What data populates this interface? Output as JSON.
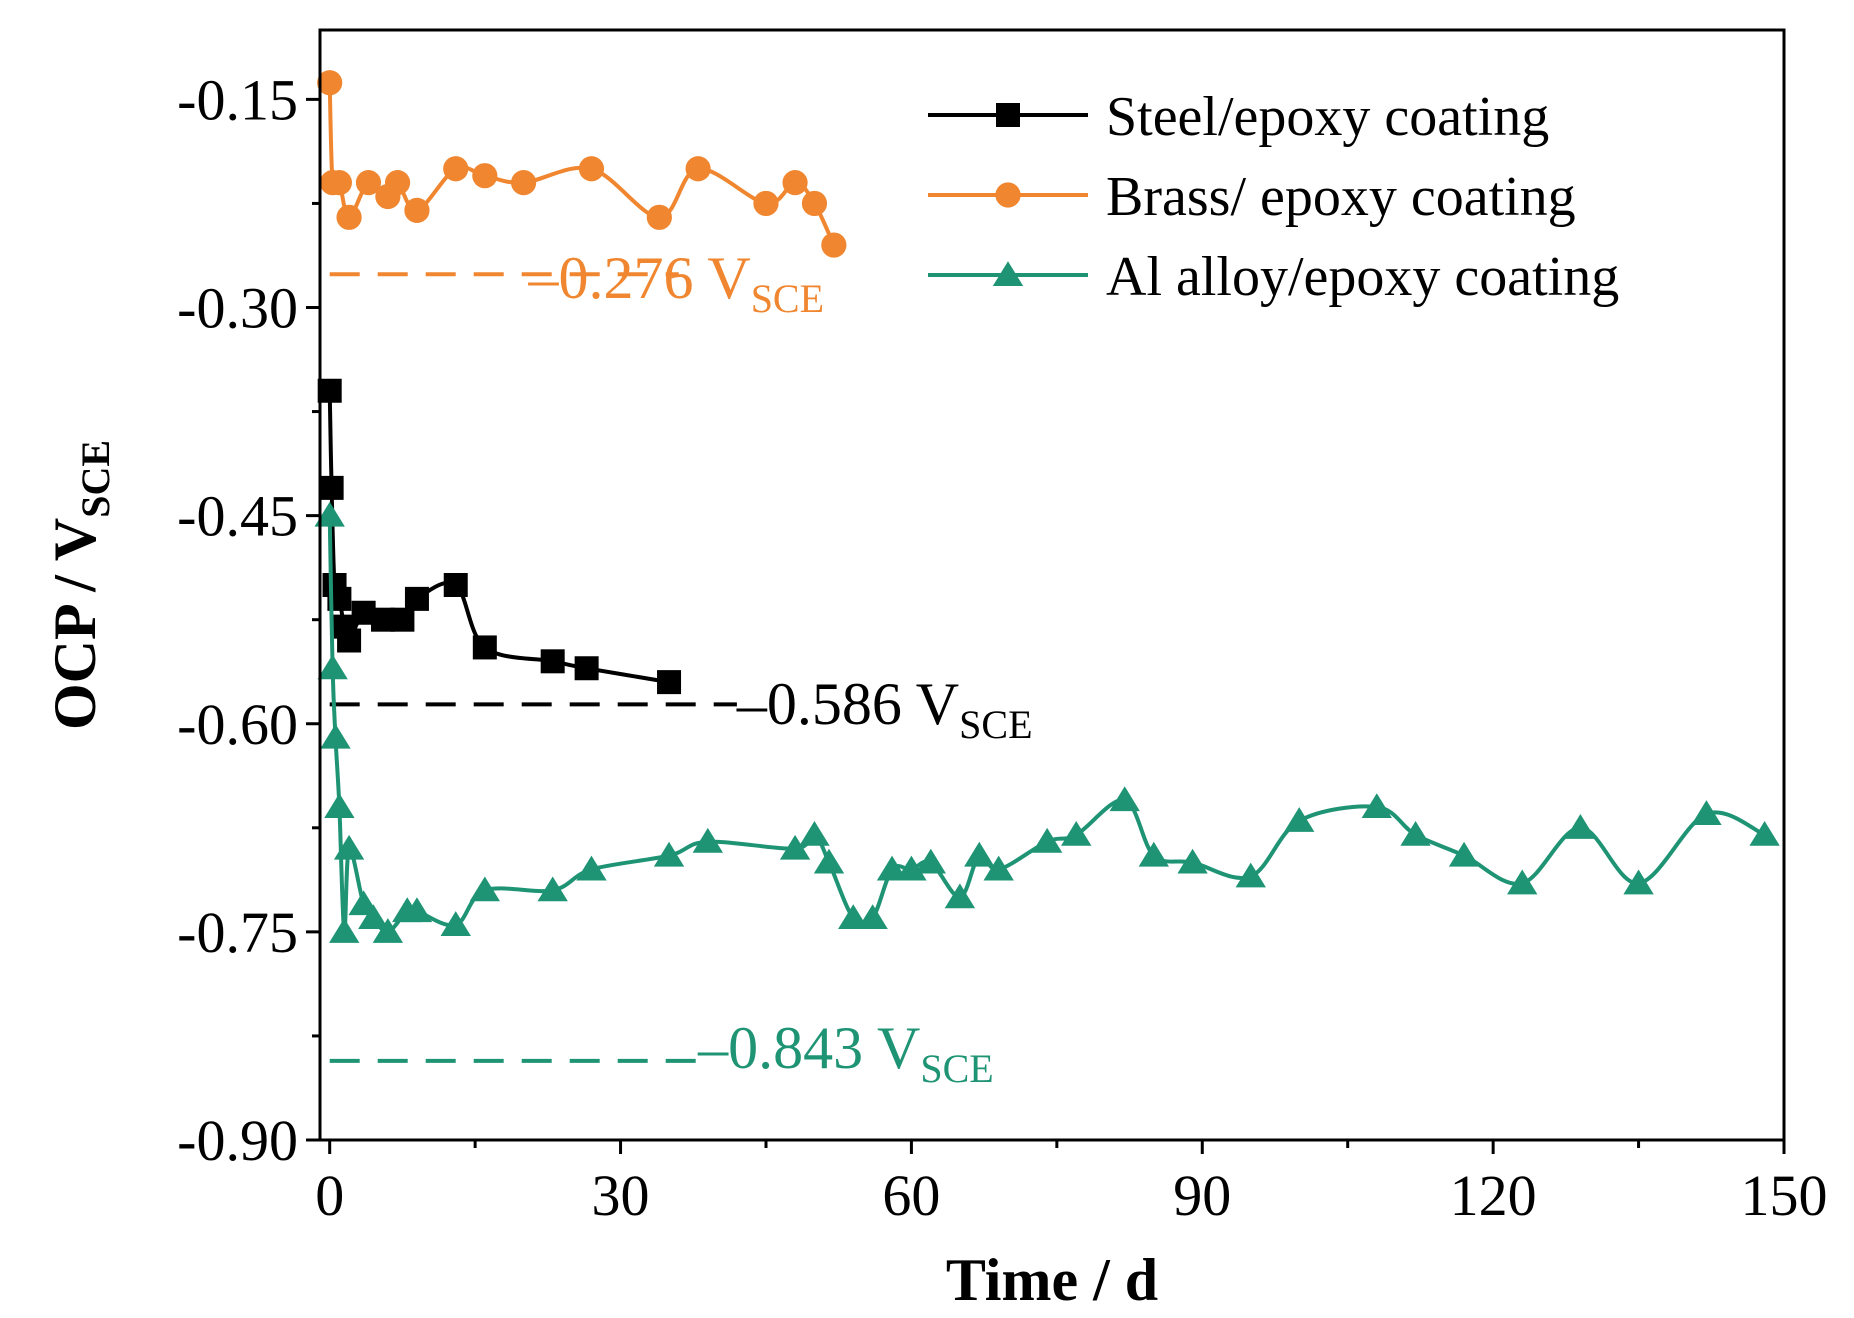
{
  "chart_data": {
    "type": "line",
    "title": "",
    "xlabel": "Time / d",
    "ylabel_main": "OCP / V",
    "ylabel_sub": "SCE",
    "xlim": [
      -1,
      150
    ],
    "ylim": [
      -0.9,
      -0.1
    ],
    "xticks": [
      0,
      30,
      60,
      90,
      120,
      150
    ],
    "xtick_labels": [
      "0",
      "30",
      "60",
      "90",
      "120",
      "150"
    ],
    "yticks": [
      -0.15,
      -0.3,
      -0.45,
      -0.6,
      -0.75,
      -0.9
    ],
    "ytick_labels": [
      "-0.15",
      "-0.30",
      "-0.45",
      "-0.60",
      "-0.75",
      "-0.90"
    ],
    "grid": false,
    "legend_position": "top-right",
    "series": [
      {
        "name": "Steel/epoxy coating",
        "color": "#000000",
        "marker": "square",
        "x": [
          0,
          0.2,
          0.5,
          1,
          1.5,
          2,
          3.5,
          5.5,
          7.5,
          9,
          13,
          16,
          23,
          26.5,
          35
        ],
        "y": [
          -0.36,
          -0.43,
          -0.5,
          -0.51,
          -0.53,
          -0.54,
          -0.52,
          -0.525,
          -0.525,
          -0.51,
          -0.5,
          -0.545,
          -0.555,
          -0.56,
          -0.57
        ]
      },
      {
        "name": "Brass/ epoxy coating",
        "color": "#F0862F",
        "marker": "circle",
        "x": [
          0,
          0.3,
          1,
          2,
          4,
          6,
          7,
          9,
          13,
          16,
          20,
          27,
          34,
          38,
          45,
          48,
          50,
          52
        ],
        "y": [
          -0.138,
          -0.21,
          -0.21,
          -0.235,
          -0.21,
          -0.22,
          -0.21,
          -0.23,
          -0.2,
          -0.205,
          -0.21,
          -0.2,
          -0.235,
          -0.2,
          -0.225,
          -0.21,
          -0.225,
          -0.255
        ]
      },
      {
        "name": "Al alloy/epoxy coating",
        "color": "#1E9474",
        "marker": "triangle",
        "x": [
          0,
          0.3,
          0.6,
          1,
          1.5,
          2,
          3.5,
          4.5,
          6,
          8,
          9,
          13,
          16,
          23,
          27,
          35,
          39,
          48,
          50,
          51.5,
          54,
          56,
          58,
          60,
          62,
          65,
          67,
          69,
          74,
          77,
          82,
          85,
          89,
          95,
          100,
          108,
          112,
          117,
          123,
          129,
          135,
          142,
          148
        ],
        "y": [
          -0.45,
          -0.56,
          -0.61,
          -0.66,
          -0.75,
          -0.69,
          -0.73,
          -0.74,
          -0.75,
          -0.735,
          -0.735,
          -0.745,
          -0.72,
          -0.72,
          -0.705,
          -0.695,
          -0.685,
          -0.69,
          -0.68,
          -0.7,
          -0.74,
          -0.74,
          -0.705,
          -0.705,
          -0.7,
          -0.725,
          -0.695,
          -0.705,
          -0.685,
          -0.68,
          -0.655,
          -0.695,
          -0.7,
          -0.71,
          -0.67,
          -0.66,
          -0.68,
          -0.695,
          -0.715,
          -0.675,
          -0.715,
          -0.665,
          -0.68
        ]
      }
    ],
    "reference_lines": [
      {
        "y": -0.276,
        "x_start": 0,
        "x_end": 36,
        "color": "#F0862F",
        "label_main": "–0.276 V",
        "label_sub": "SCE",
        "label_x": 20.5,
        "label_y": -0.293
      },
      {
        "y": -0.586,
        "x_start": 0,
        "x_end": 42,
        "color": "#000000",
        "label_main": "–0.586 V",
        "label_sub": "SCE",
        "label_x": 42,
        "label_y": -0.6
      },
      {
        "y": -0.843,
        "x_start": 0,
        "x_end": 38,
        "color": "#1E9474",
        "label_main": "–0.843 V",
        "label_sub": "SCE",
        "label_x": 38,
        "label_y": -0.848
      }
    ]
  }
}
